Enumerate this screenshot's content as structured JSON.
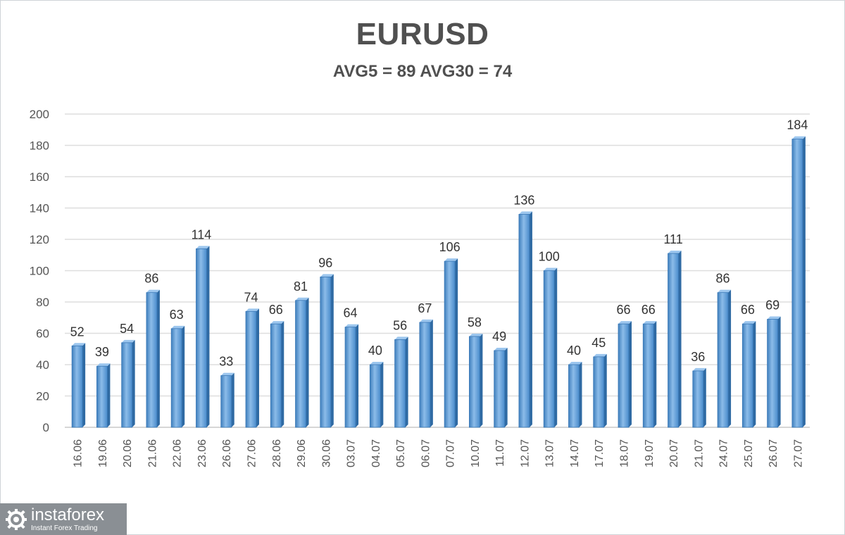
{
  "chart_data": {
    "type": "bar",
    "title": "EURUSD",
    "subtitle": "AVG5 = 89 AVG30 = 74",
    "xlabel": "",
    "ylabel": "",
    "ylim": [
      0,
      200
    ],
    "yticks": [
      0,
      20,
      40,
      60,
      80,
      100,
      120,
      140,
      160,
      180,
      200
    ],
    "grid": true,
    "legend": "none",
    "categories": [
      "16.06",
      "19.06",
      "20.06",
      "21.06",
      "22.06",
      "23.06",
      "26.06",
      "27.06",
      "28.06",
      "29.06",
      "30.06",
      "03.07",
      "04.07",
      "05.07",
      "06.07",
      "07.07",
      "10.07",
      "11.07",
      "12.07",
      "13.07",
      "14.07",
      "17.07",
      "18.07",
      "19.07",
      "20.07",
      "21.07",
      "24.07",
      "25.07",
      "26.07",
      "27.07"
    ],
    "values": [
      52,
      39,
      54,
      86,
      63,
      114,
      33,
      74,
      66,
      81,
      96,
      64,
      40,
      56,
      67,
      106,
      58,
      49,
      136,
      100,
      40,
      45,
      66,
      66,
      111,
      36,
      86,
      66,
      69,
      184
    ],
    "bar_color": "#5b9bd5",
    "data_labels": true
  },
  "watermark": {
    "name": "instaforex",
    "tagline": "Instant Forex Trading"
  }
}
